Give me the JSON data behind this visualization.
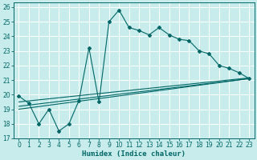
{
  "xlabel": "Humidex (Indice chaleur)",
  "ylabel": "",
  "xlim": [
    -0.5,
    23.5
  ],
  "ylim": [
    17,
    26.3
  ],
  "yticks": [
    17,
    18,
    19,
    20,
    21,
    22,
    23,
    24,
    25,
    26
  ],
  "xticks": [
    0,
    1,
    2,
    3,
    4,
    5,
    6,
    7,
    8,
    9,
    10,
    11,
    12,
    13,
    14,
    15,
    16,
    17,
    18,
    19,
    20,
    21,
    22,
    23
  ],
  "bg_color": "#c8ecec",
  "grid_color": "#a8d8d8",
  "line_color": "#006666",
  "line1_x": [
    0,
    1,
    2,
    3,
    4,
    5,
    6,
    7,
    8,
    9,
    10,
    11,
    12,
    13,
    14,
    15,
    16,
    17,
    18,
    19,
    20,
    21,
    22,
    23
  ],
  "line1_y": [
    19.9,
    19.4,
    18.0,
    19.0,
    17.5,
    18.0,
    19.6,
    23.2,
    19.5,
    25.0,
    25.8,
    24.6,
    24.4,
    24.1,
    24.6,
    24.1,
    23.8,
    23.7,
    23.0,
    22.8,
    22.0,
    21.8,
    21.5,
    21.1
  ],
  "line2_x": [
    0,
    23
  ],
  "line2_y": [
    19.0,
    21.1
  ],
  "line3_x": [
    0,
    23
  ],
  "line3_y": [
    19.2,
    21.1
  ],
  "line4_x": [
    0,
    23
  ],
  "line4_y": [
    19.5,
    21.15
  ]
}
